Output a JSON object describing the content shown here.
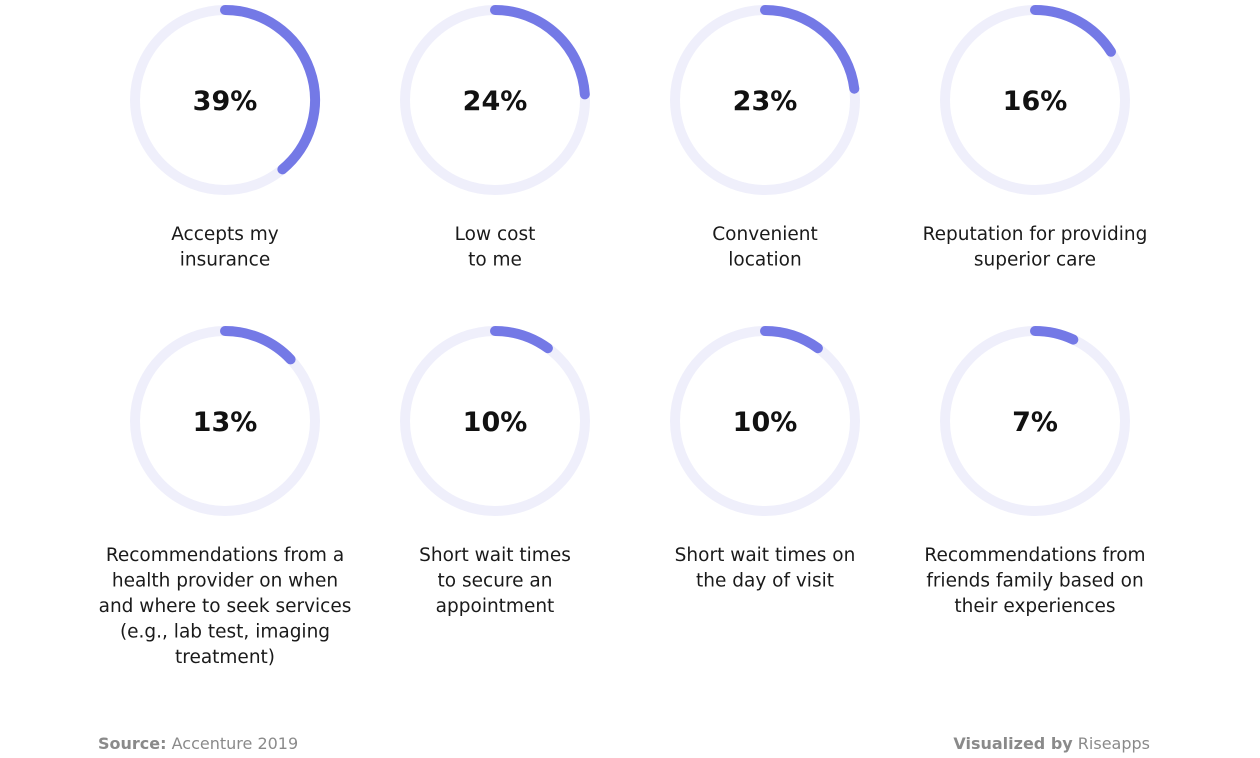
{
  "chart_data": {
    "type": "donut-grid",
    "title": "",
    "colors": {
      "arc": "#7479e6",
      "track": "#efeffb"
    },
    "items": [
      {
        "value": 39,
        "value_label": "39%",
        "label_lines": [
          "Accepts my",
          "insurance"
        ]
      },
      {
        "value": 24,
        "value_label": "24%",
        "label_lines": [
          "Low cost",
          "to me"
        ]
      },
      {
        "value": 23,
        "value_label": "23%",
        "label_lines": [
          "Convenient",
          "location"
        ]
      },
      {
        "value": 16,
        "value_label": "16%",
        "label_lines": [
          "Reputation for providing",
          "superior care"
        ]
      },
      {
        "value": 13,
        "value_label": "13%",
        "label_lines": [
          "Recommendations from a",
          "health provider on when",
          "and where to seek services",
          "(e.g., lab test, imaging",
          "treatment)"
        ]
      },
      {
        "value": 10,
        "value_label": "10%",
        "label_lines": [
          "Short wait times",
          "to secure an",
          "appointment"
        ]
      },
      {
        "value": 10,
        "value_label": "10%",
        "label_lines": [
          "Short wait times on",
          "the day of visit"
        ]
      },
      {
        "value": 7,
        "value_label": "7%",
        "label_lines": [
          "Recommendations from",
          "friends family based on",
          "their experiences"
        ]
      }
    ]
  },
  "footer": {
    "source_label": "Source:",
    "source_value": "Accenture 2019",
    "viz_label": "Visualized by",
    "viz_value": "Riseapps"
  }
}
